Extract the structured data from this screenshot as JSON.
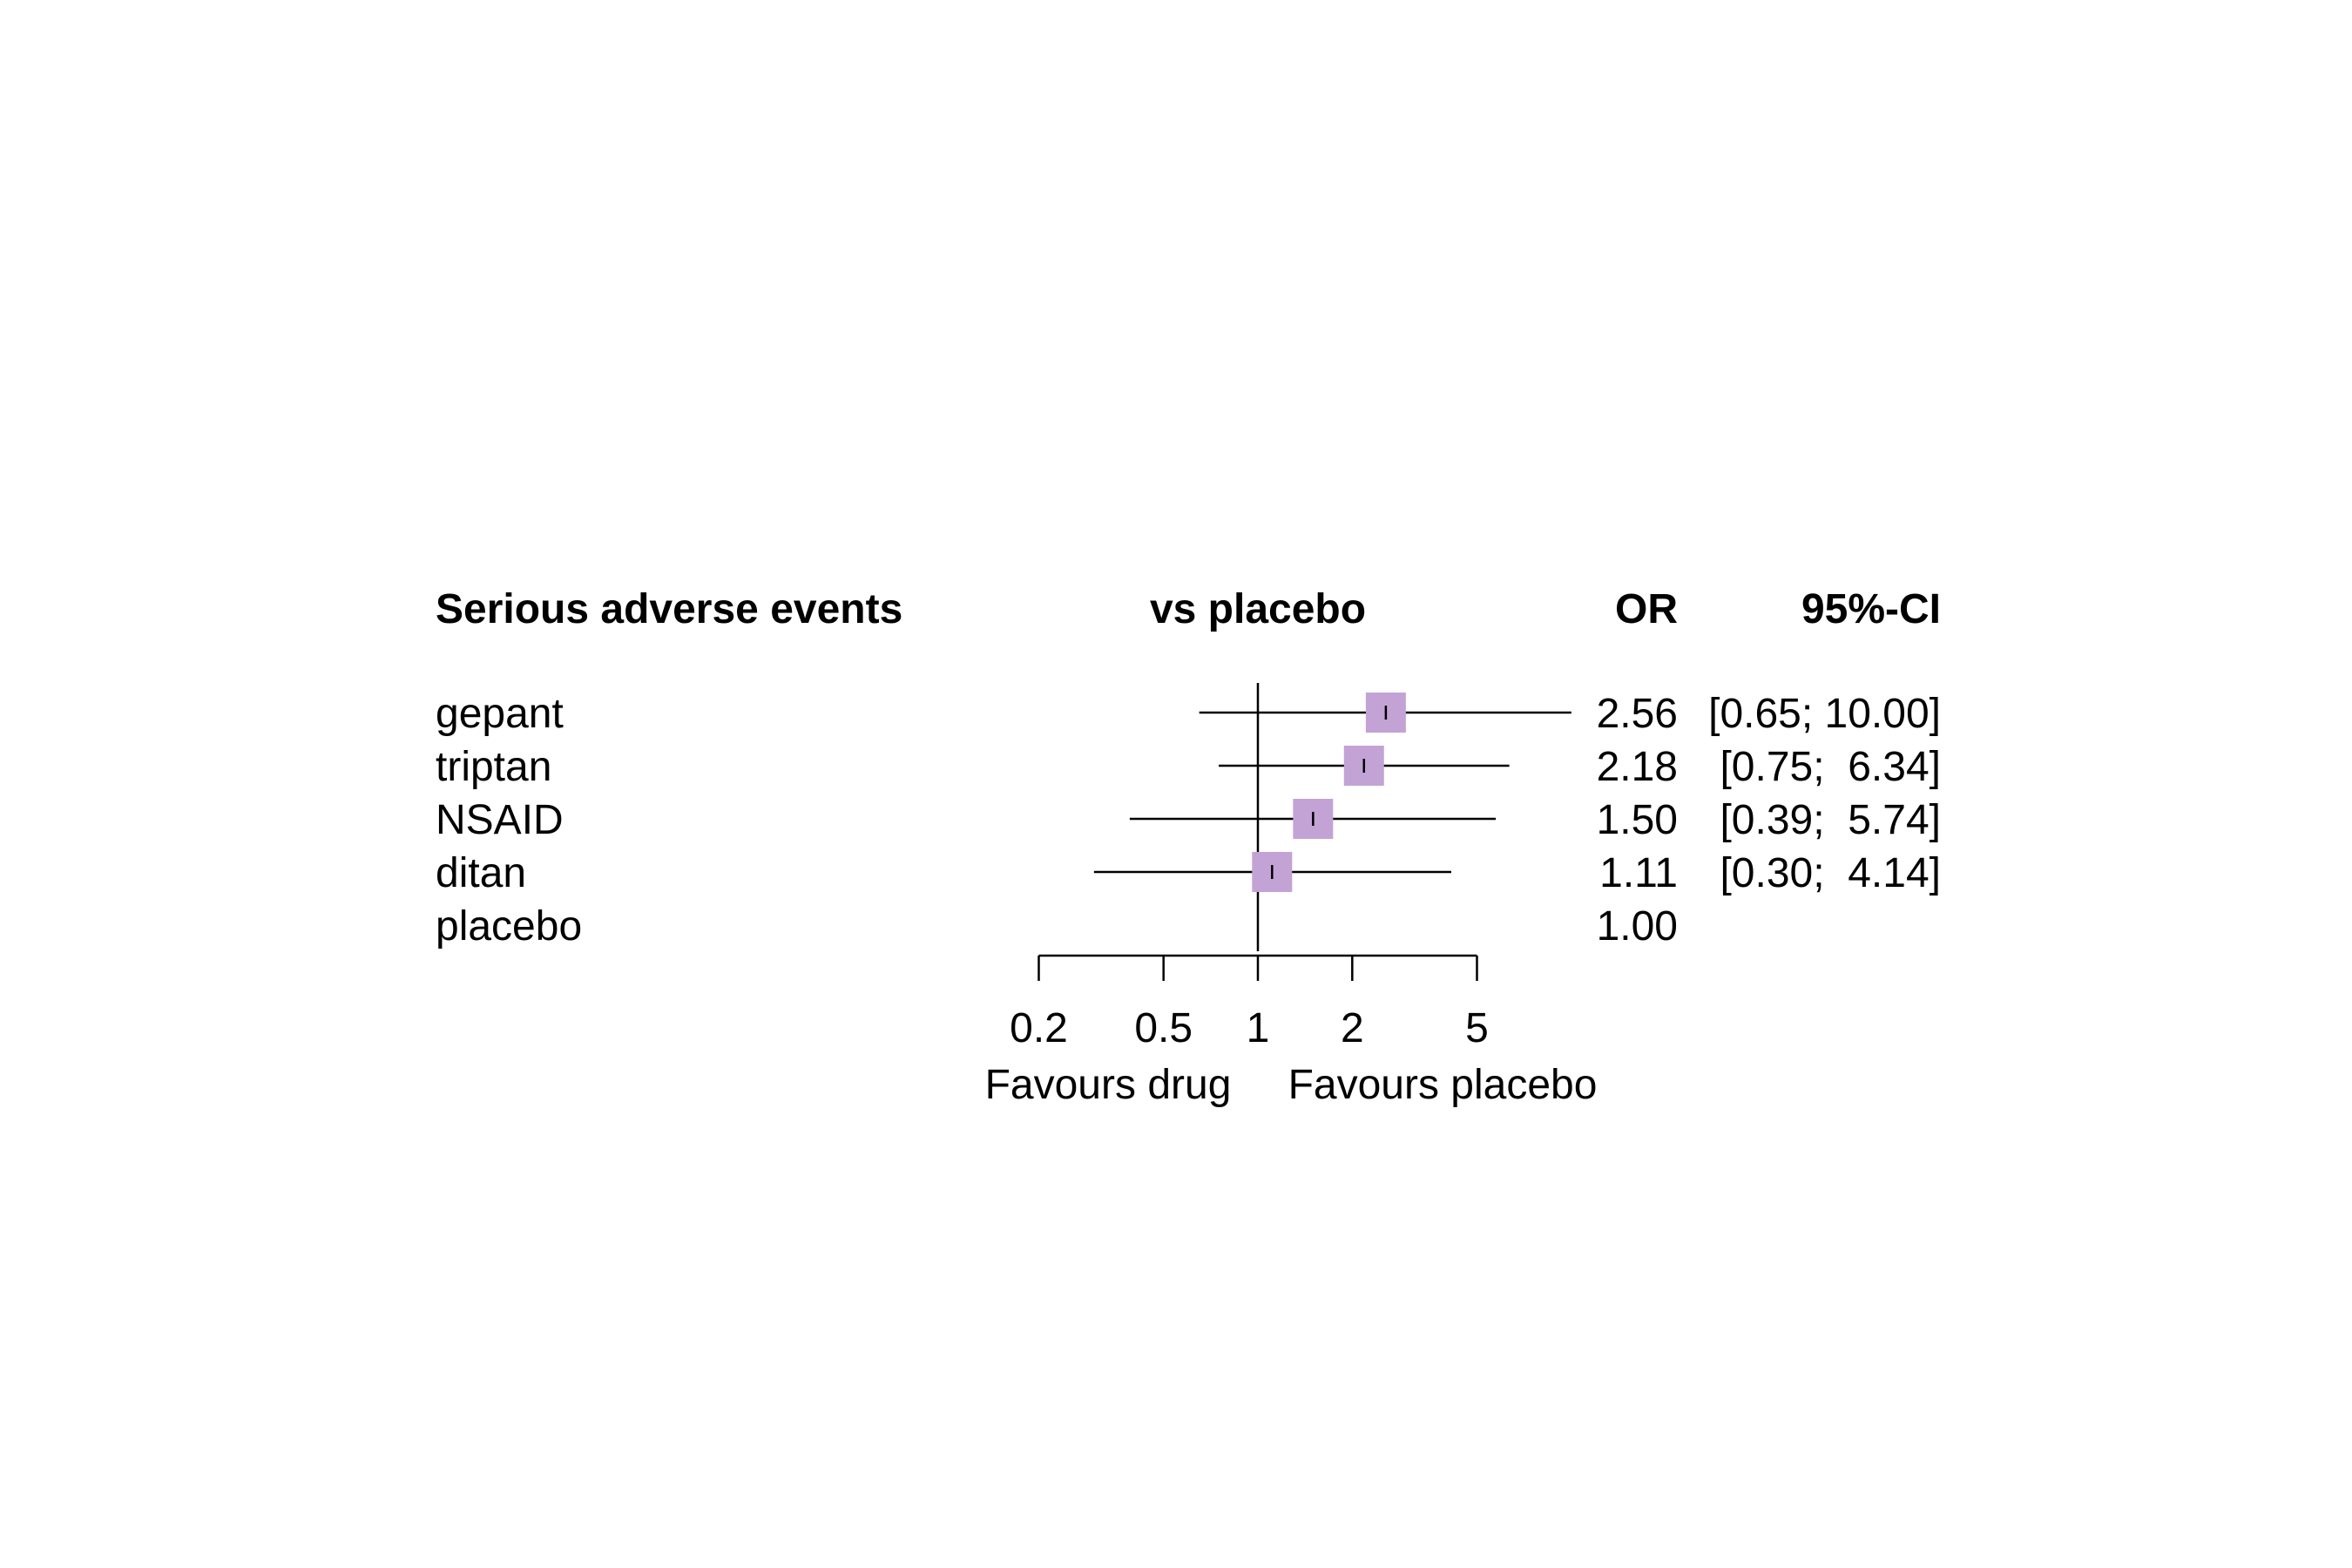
{
  "chart_data": {
    "type": "forest",
    "headers": {
      "outcome": "Serious adverse events",
      "comparison": "vs placebo",
      "estimate": "OR",
      "ci": "95%-CI"
    },
    "rows": [
      {
        "label": "gepant",
        "or": 2.56,
        "lower": 0.65,
        "upper": 10.0,
        "or_text": "2.56",
        "ci_text": "[0.65; 10.00]"
      },
      {
        "label": "triptan",
        "or": 2.18,
        "lower": 0.75,
        "upper": 6.34,
        "or_text": "2.18",
        "ci_text": "[0.75;  6.34]"
      },
      {
        "label": "NSAID",
        "or": 1.5,
        "lower": 0.39,
        "upper": 5.74,
        "or_text": "1.50",
        "ci_text": "[0.39;  5.74]"
      },
      {
        "label": "ditan",
        "or": 1.11,
        "lower": 0.3,
        "upper": 4.14,
        "or_text": "1.11",
        "ci_text": "[0.30;  4.14]"
      },
      {
        "label": "placebo",
        "or": 1.0,
        "lower": null,
        "upper": null,
        "or_text": "1.00",
        "ci_text": ""
      }
    ],
    "x_axis": {
      "scale": "log",
      "ticks": [
        0.2,
        0.5,
        1,
        2,
        5
      ],
      "tick_labels": [
        "0.2",
        "0.5",
        "1",
        "2",
        "5"
      ],
      "range": [
        0.2,
        5
      ],
      "reference_line": 1
    },
    "favours_left": "Favours drug",
    "favours_right": "Favours placebo",
    "colors": {
      "box": "#c3a3d6",
      "line": "#000000"
    }
  }
}
